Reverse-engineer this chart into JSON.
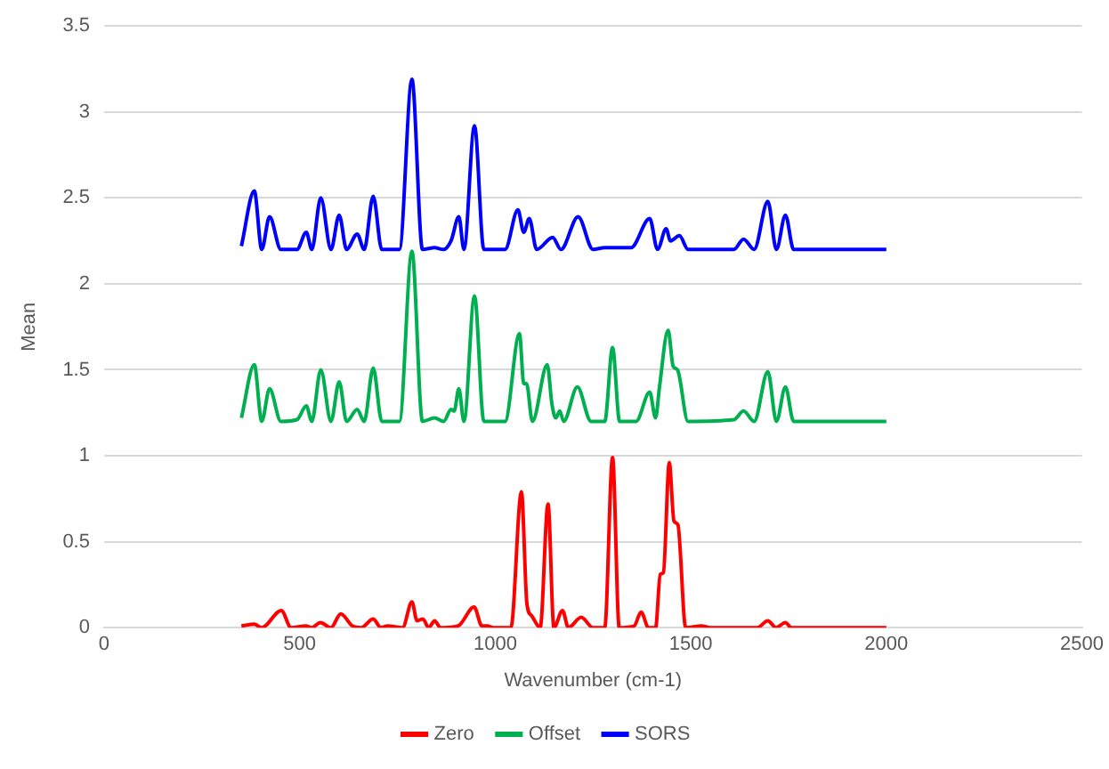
{
  "chart_data": {
    "type": "line",
    "xlabel": "Wavenumber (cm-1)",
    "ylabel": "Mean",
    "xlim": [
      0,
      2500
    ],
    "xticks": [
      0,
      500,
      1000,
      1500,
      2000,
      2500
    ],
    "ylim": [
      0,
      3.5
    ],
    "yticks": [
      0,
      0.5,
      1,
      1.5,
      2,
      2.5,
      3,
      3.5
    ],
    "grid": "y",
    "legend": "bottom",
    "marker": "none",
    "line_style": "solid",
    "series": [
      {
        "name": "Zero",
        "color": "#ff0000",
        "x": [
          351,
          384,
          403,
          453,
          478,
          516,
          531,
          553,
          580,
          605,
          635,
          657,
          688,
          708,
          725,
          763,
          787,
          800,
          815,
          830,
          845,
          860,
          905,
          946,
          966,
          980,
          995,
          1040,
          1067,
          1081,
          1093,
          1115,
          1135,
          1150,
          1172,
          1187,
          1220,
          1250,
          1280,
          1300,
          1317,
          1355,
          1373,
          1392,
          1410,
          1422,
          1430,
          1445,
          1457,
          1467,
          1487,
          1527,
          1550,
          1670,
          1697,
          1718,
          1742,
          1757,
          2000
        ],
        "values": [
          0.01,
          0.02,
          0,
          0.1,
          0,
          0.01,
          0,
          0.03,
          0,
          0.08,
          0.01,
          0,
          0.05,
          0,
          0.01,
          0,
          0.15,
          0.04,
          0.05,
          0,
          0.04,
          0,
          0.01,
          0.12,
          0.01,
          0.01,
          0,
          0,
          0.79,
          0.14,
          0.07,
          0,
          0.72,
          0,
          0.1,
          0,
          0.06,
          0,
          0,
          0.99,
          0,
          0.01,
          0.09,
          0,
          0,
          0.31,
          0.32,
          0.96,
          0.62,
          0.6,
          0,
          0.01,
          0,
          0,
          0.04,
          0,
          0.03,
          0,
          0
        ]
      },
      {
        "name": "Offset",
        "color": "#00b050",
        "x": [
          351,
          384,
          403,
          423,
          452,
          493,
          517,
          531,
          554,
          580,
          601,
          620,
          647,
          665,
          688,
          710,
          755,
          787,
          814,
          845,
          868,
          887,
          895,
          907,
          920,
          947,
          971,
          1025,
          1062,
          1073,
          1080,
          1095,
          1133,
          1145,
          1155,
          1165,
          1175,
          1210,
          1245,
          1280,
          1300,
          1318,
          1360,
          1395,
          1410,
          1420,
          1442,
          1455,
          1466,
          1493,
          1610,
          1635,
          1662,
          1697,
          1719,
          1742,
          1763,
          2000
        ],
        "values": [
          1.22,
          1.53,
          1.2,
          1.39,
          1.2,
          1.21,
          1.29,
          1.2,
          1.5,
          1.2,
          1.43,
          1.2,
          1.27,
          1.2,
          1.51,
          1.2,
          1.2,
          2.19,
          1.2,
          1.22,
          1.2,
          1.27,
          1.26,
          1.39,
          1.2,
          1.93,
          1.2,
          1.2,
          1.71,
          1.42,
          1.42,
          1.2,
          1.53,
          1.3,
          1.22,
          1.26,
          1.2,
          1.4,
          1.2,
          1.2,
          1.63,
          1.2,
          1.2,
          1.37,
          1.22,
          1.4,
          1.73,
          1.52,
          1.5,
          1.2,
          1.21,
          1.26,
          1.2,
          1.49,
          1.2,
          1.4,
          1.2,
          1.2
        ]
      },
      {
        "name": "SORS",
        "color": "#0000ff",
        "x": [
          351,
          384,
          403,
          423,
          452,
          493,
          517,
          531,
          554,
          580,
          601,
          620,
          647,
          665,
          688,
          710,
          755,
          787,
          814,
          845,
          868,
          887,
          907,
          920,
          947,
          971,
          1025,
          1058,
          1073,
          1087,
          1106,
          1147,
          1168,
          1212,
          1250,
          1280,
          1347,
          1395,
          1415,
          1437,
          1448,
          1471,
          1493,
          1610,
          1635,
          1662,
          1697,
          1719,
          1742,
          1763,
          2000
        ],
        "values": [
          2.22,
          2.54,
          2.2,
          2.39,
          2.2,
          2.2,
          2.3,
          2.2,
          2.5,
          2.2,
          2.4,
          2.2,
          2.29,
          2.2,
          2.51,
          2.2,
          2.2,
          3.19,
          2.2,
          2.21,
          2.2,
          2.25,
          2.39,
          2.2,
          2.92,
          2.2,
          2.2,
          2.43,
          2.3,
          2.38,
          2.2,
          2.27,
          2.2,
          2.39,
          2.2,
          2.21,
          2.21,
          2.38,
          2.2,
          2.32,
          2.25,
          2.28,
          2.2,
          2.2,
          2.26,
          2.2,
          2.48,
          2.2,
          2.4,
          2.2,
          2.2
        ]
      }
    ]
  }
}
